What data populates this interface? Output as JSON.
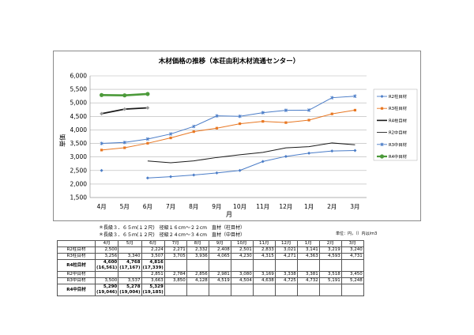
{
  "notes": {
    "line1": "＊長級３．６５ｍ(１２尺)　径級１６cm～２２cm　直材（柱目材）",
    "line2": "＊長級３．６５ｍ(１２尺)　径級２４cm～３４cm　直材（中目材）",
    "unit": "単位：円，（）内は/ｍ3"
  },
  "chart_data": {
    "type": "line",
    "title": "木材価格の推移（本荘由利木材流通センター）",
    "xlabel": "月",
    "ylabel": "単価",
    "categories": [
      "4月",
      "5月",
      "6月",
      "7月",
      "8月",
      "9月",
      "10月",
      "11月",
      "12月",
      "1月",
      "2月",
      "3月"
    ],
    "ylim": [
      1500,
      6000
    ],
    "yticks": [
      "1,500",
      "2,000",
      "2,500",
      "3,000",
      "3,500",
      "4,000",
      "4,500",
      "5,000",
      "5,500",
      "6,000"
    ],
    "grid": true,
    "legend_position": "right",
    "series": [
      {
        "name": "R2柱目材",
        "color": "#4a7cc7",
        "marker": "diamond",
        "values": [
          2500,
          null,
          2224,
          2271,
          2332,
          2408,
          2501,
          2833,
          3021,
          3141,
          3219,
          3240
        ]
      },
      {
        "name": "R3柱目材",
        "color": "#e87722",
        "marker": "square",
        "values": [
          3256,
          3340,
          3507,
          3705,
          3936,
          4065,
          4230,
          4315,
          4271,
          4363,
          4593,
          4731
        ]
      },
      {
        "name": "R4柱目材",
        "color": "#1a1a1a",
        "marker": "none",
        "values": [
          4600,
          4768,
          4816,
          null,
          null,
          null,
          null,
          null,
          null,
          null,
          null,
          null
        ]
      },
      {
        "name": "R2中目材",
        "color": "#1a1a1a",
        "marker": "none",
        "values": [
          null,
          null,
          2851,
          2784,
          2856,
          2981,
          3080,
          3169,
          3338,
          3381,
          3518,
          3450
        ]
      },
      {
        "name": "R3中目材",
        "color": "#4a7cc7",
        "marker": "star",
        "values": [
          3500,
          3537,
          3663,
          3850,
          4128,
          4519,
          4504,
          4638,
          4725,
          4732,
          5191,
          5248
        ]
      },
      {
        "name": "R4中目材",
        "color": "#4c9a3a",
        "marker": "circle",
        "values": [
          5290,
          5278,
          5329,
          null,
          null,
          null,
          null,
          null,
          null,
          null,
          null,
          null
        ]
      }
    ]
  },
  "table": {
    "headers": [
      "",
      "4月",
      "5月",
      "6月",
      "7月",
      "8月",
      "9月",
      "10月",
      "11月",
      "12月",
      "1月",
      "2月",
      "3月"
    ],
    "rows": [
      {
        "label": "R2柱目材",
        "cells": [
          "2,500",
          "",
          "2,224",
          "2,271",
          "2,332",
          "2,408",
          "2,501",
          "2,833",
          "3,021",
          "3,141",
          "3,219",
          "3,240"
        ]
      },
      {
        "label": "R3柱目材",
        "cells": [
          "3,256",
          "3,340",
          "3,507",
          "3,705",
          "3,936",
          "4,065",
          "4,230",
          "4,315",
          "4,271",
          "4,363",
          "4,593",
          "4,731"
        ]
      },
      {
        "label": "R4柱目材",
        "tall": true,
        "cells": [
          "4,600",
          "4,768",
          "4,816",
          "",
          "",
          "",
          "",
          "",
          "",
          "",
          "",
          ""
        ],
        "sub": [
          "(16,561)",
          "(17,167)",
          "(17,339)",
          "",
          "",
          "",
          "",
          "",
          "",
          "",
          "",
          ""
        ]
      },
      {
        "label": "R2中目材",
        "cells": [
          "",
          "",
          "2,851",
          "2,784",
          "2,856",
          "2,981",
          "3,080",
          "3,169",
          "3,338",
          "3,381",
          "3,518",
          "3,450"
        ]
      },
      {
        "label": "R3中目材",
        "cells": [
          "3,500",
          "3,537",
          "3,663",
          "3,850",
          "4,128",
          "4,519",
          "4,504",
          "4,638",
          "4,725",
          "4,732",
          "5,191",
          "5,248"
        ]
      },
      {
        "label": "R4中目材",
        "tall": true,
        "cells": [
          "5,290",
          "5,278",
          "5,329",
          "",
          "",
          "",
          "",
          "",
          "",
          "",
          "",
          ""
        ],
        "sub": [
          "(19,046)",
          "(19,004)",
          "(19,185)",
          "",
          "",
          "",
          "",
          "",
          "",
          "",
          "",
          ""
        ]
      }
    ]
  }
}
